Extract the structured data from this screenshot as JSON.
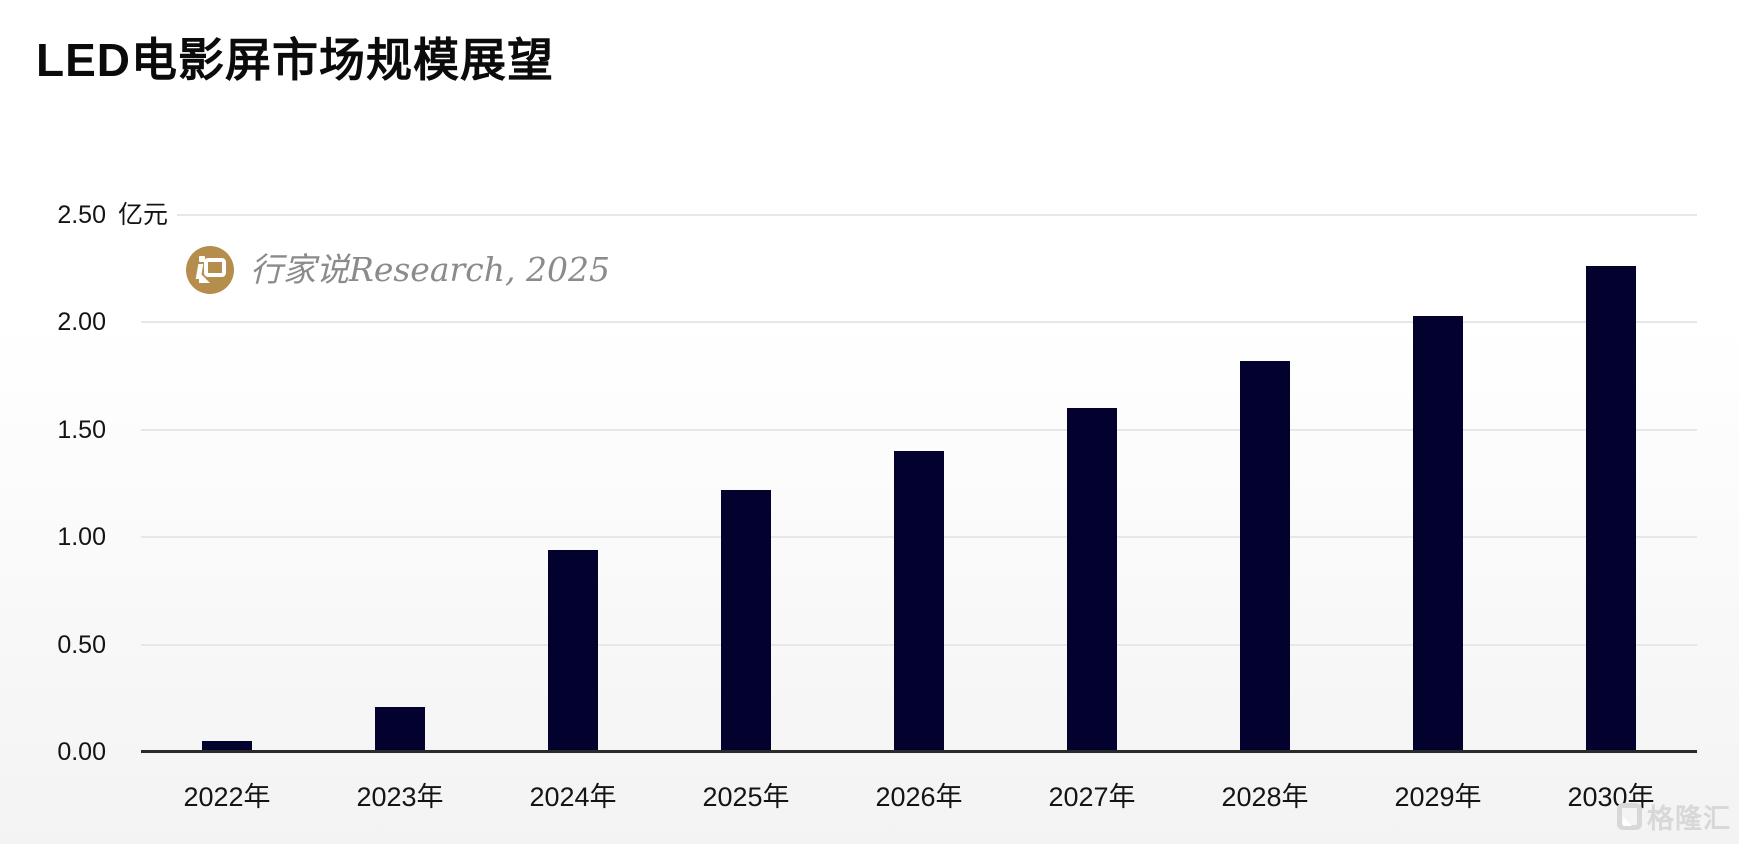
{
  "page": {
    "title": "LED电影屏市场规模展望"
  },
  "watermark": {
    "icon": "hangjiashuo-gold-badge-icon",
    "icon_color": "#b58d4c",
    "text": "行家说Research, 2025",
    "text_color": "#8b8b8b"
  },
  "brand_watermark": {
    "icon": "gelonghui-logo-icon",
    "text": "格隆汇",
    "color": "#d8d8d8"
  },
  "chart_data": {
    "type": "bar",
    "title": "LED电影屏市场规模展望",
    "unit_label": "亿元",
    "categories": [
      "2022年",
      "2023年",
      "2024年",
      "2025年",
      "2026年",
      "2027年",
      "2028年",
      "2029年",
      "2030年"
    ],
    "values": [
      0.04,
      0.2,
      0.93,
      1.21,
      1.39,
      1.59,
      1.81,
      2.02,
      2.25
    ],
    "xlabel": "",
    "ylabel": "亿元",
    "ylim": [
      0,
      2.5
    ],
    "ytick_step": 0.5,
    "ytick_labels": [
      "0.00",
      "0.50",
      "1.00",
      "1.50",
      "2.00",
      "2.50"
    ],
    "grid": true,
    "legend": false,
    "bar_color": "#03022e",
    "gridline_color": "#e7e7e7",
    "axis_line_color": "#2b2b2b"
  }
}
